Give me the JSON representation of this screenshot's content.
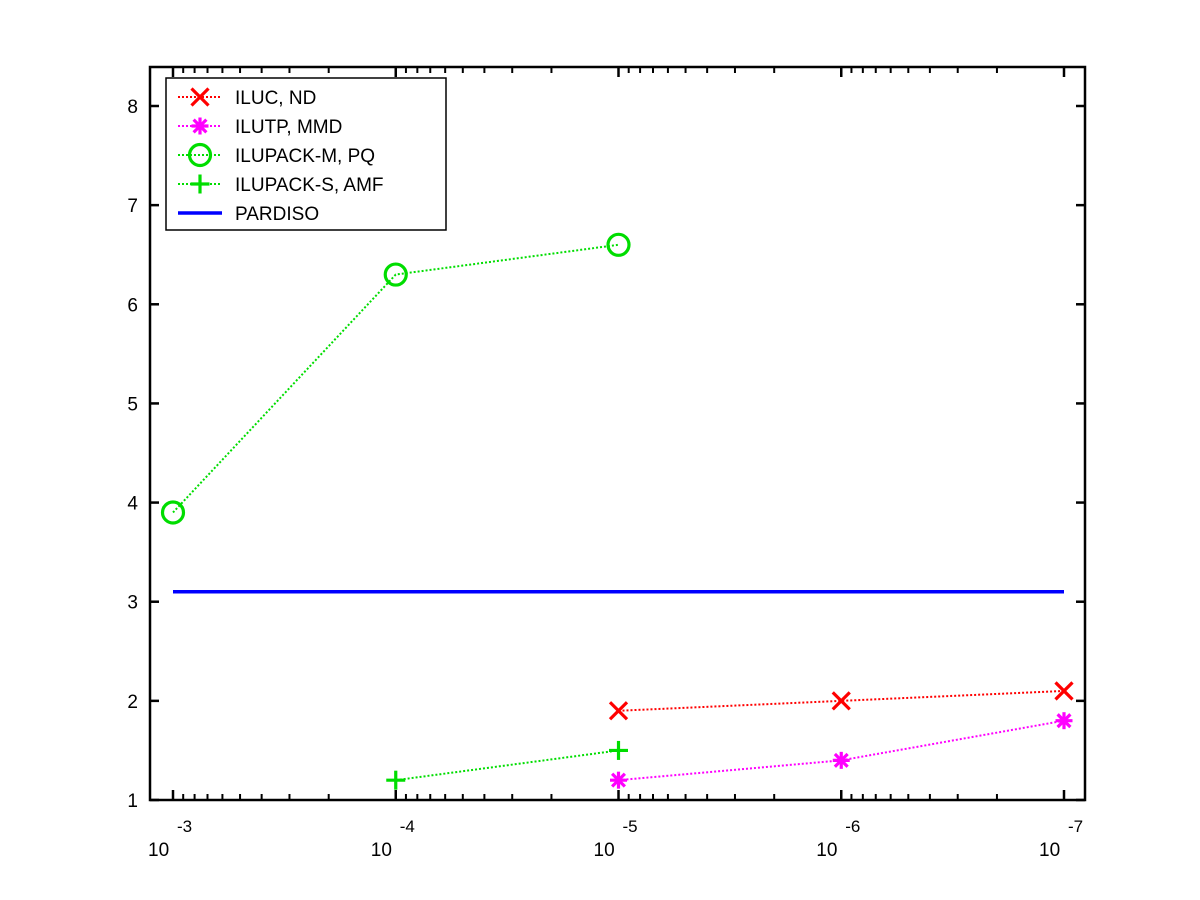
{
  "chart_data": {
    "type": "line",
    "x_scale": "log",
    "x_reversed": true,
    "x": [
      0.001,
      0.0001,
      1e-05,
      1e-06,
      1e-07
    ],
    "x_tick_labels": [
      {
        "base": "10",
        "exp": "-3"
      },
      {
        "base": "10",
        "exp": "-4"
      },
      {
        "base": "10",
        "exp": "-5"
      },
      {
        "base": "10",
        "exp": "-6"
      },
      {
        "base": "10",
        "exp": "-7"
      }
    ],
    "y_ticks": [
      "1",
      "2",
      "3",
      "4",
      "5",
      "6",
      "7",
      "8"
    ],
    "xlim": [
      0.001,
      1e-07
    ],
    "ylim": [
      1,
      8.35
    ],
    "grid": false,
    "legend_position": "top-left",
    "series": [
      {
        "name": "ILUC,  ND",
        "color": "#ff0000",
        "marker": "x",
        "line": "dotted",
        "x": [
          1e-05,
          1e-06,
          1e-07
        ],
        "y": [
          1.9,
          2.0,
          2.1
        ]
      },
      {
        "name": "ILUTP, MMD",
        "color": "#ff00ff",
        "marker": "asterisk",
        "line": "dotted",
        "x": [
          1e-05,
          1e-06,
          1e-07
        ],
        "y": [
          1.2,
          1.4,
          1.8
        ]
      },
      {
        "name": "ILUPACK-M, PQ",
        "color": "#00dd00",
        "marker": "circle",
        "line": "dotted",
        "x": [
          0.001,
          0.0001,
          1e-05
        ],
        "y": [
          3.9,
          6.3,
          6.6
        ]
      },
      {
        "name": "ILUPACK-S, AMF",
        "color": "#00dd00",
        "marker": "plus",
        "line": "dotted",
        "x": [
          0.0001,
          1e-05
        ],
        "y": [
          1.2,
          1.5
        ]
      },
      {
        "name": "PARDISO",
        "color": "#0000ff",
        "marker": "none",
        "line": "solid",
        "x": [
          0.001,
          1e-07
        ],
        "y": [
          3.1,
          3.1
        ]
      }
    ]
  }
}
